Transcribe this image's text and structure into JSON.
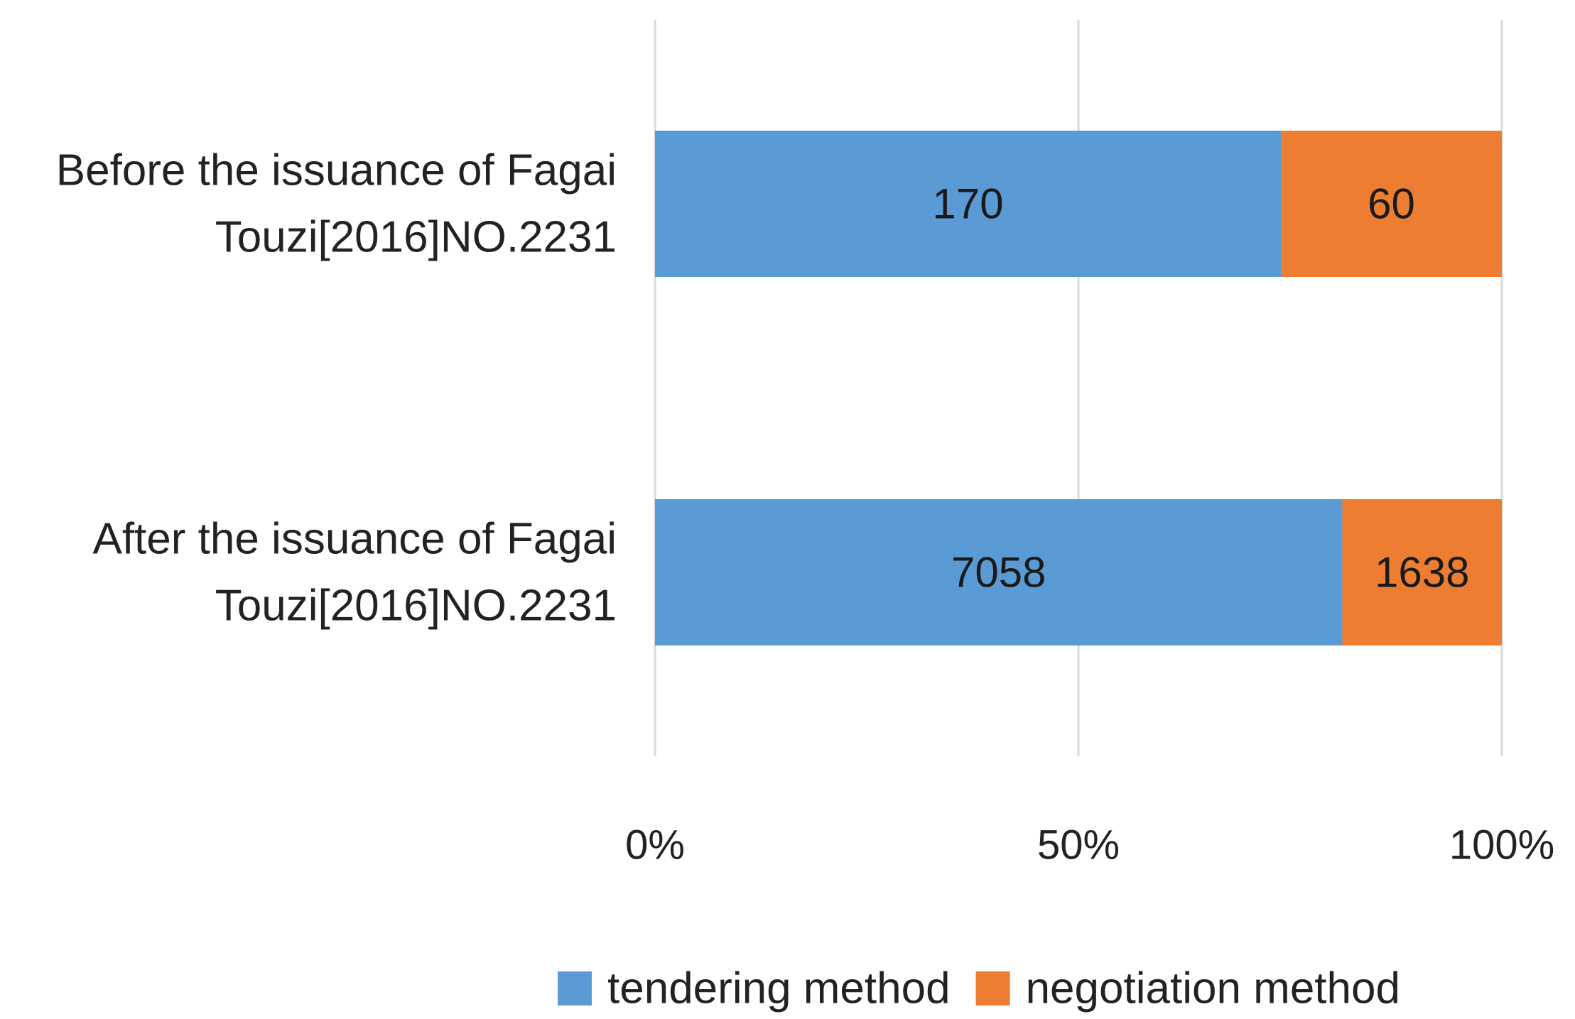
{
  "chart_data": {
    "type": "bar",
    "orientation": "horizontal",
    "stacking": "percent",
    "categories": [
      [
        "Before the issuance of Fagai",
        "Touzi[2016]NO.2231"
      ],
      [
        "After the issuance of Fagai",
        "Touzi[2016]NO.2231"
      ]
    ],
    "series": [
      {
        "name": "tendering method",
        "values": [
          170,
          7058
        ],
        "color": "#5b9bd5"
      },
      {
        "name": "negotiation method",
        "values": [
          60,
          1638
        ],
        "color": "#ed7d31"
      }
    ],
    "xaxis": {
      "ticks": [
        0,
        50,
        100
      ],
      "tick_labels": [
        "0%",
        "50%",
        "100%"
      ],
      "range": [
        0,
        100
      ]
    },
    "title": "",
    "xlabel": "",
    "ylabel": "",
    "grid": true,
    "gridline_color": "#d9d9d9",
    "legend": "bottom-center",
    "data_labels": true
  }
}
